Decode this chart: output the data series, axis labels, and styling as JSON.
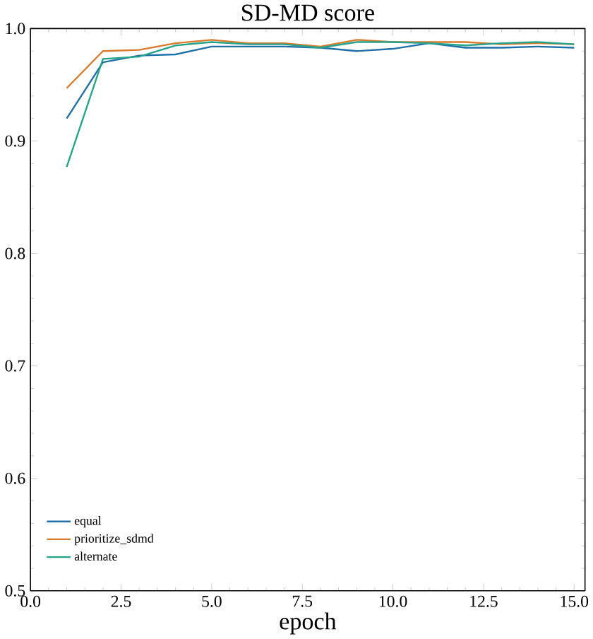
{
  "chart_data": {
    "type": "line",
    "title": "SD-MD score",
    "xlabel": "epoch",
    "x": [
      1,
      2,
      3,
      4,
      5,
      6,
      7,
      8,
      9,
      10,
      11,
      12,
      13,
      14,
      15
    ],
    "series": [
      {
        "name": "equal",
        "color": "#1f6fa8",
        "values": [
          0.92,
          0.97,
          0.976,
          0.977,
          0.984,
          0.984,
          0.984,
          0.983,
          0.98,
          0.982,
          0.987,
          0.983,
          0.983,
          0.984,
          0.983
        ]
      },
      {
        "name": "prioritize_sdmd",
        "color": "#d97a2a",
        "values": [
          0.947,
          0.98,
          0.981,
          0.987,
          0.99,
          0.987,
          0.987,
          0.984,
          0.99,
          0.988,
          0.988,
          0.988,
          0.986,
          0.987,
          0.986
        ]
      },
      {
        "name": "alternate",
        "color": "#26a48a",
        "values": [
          0.877,
          0.973,
          0.975,
          0.985,
          0.988,
          0.986,
          0.986,
          0.983,
          0.988,
          0.988,
          0.987,
          0.985,
          0.987,
          0.988,
          0.986
        ]
      }
    ],
    "xlim": [
      0,
      15.3
    ],
    "ylim": [
      0.5,
      1.0
    ],
    "xticks": [
      {
        "value": 0,
        "label": "0.0"
      },
      {
        "value": 2.5,
        "label": "2.5"
      },
      {
        "value": 5,
        "label": "5.0"
      },
      {
        "value": 7.5,
        "label": "7.5"
      },
      {
        "value": 10,
        "label": "10.0"
      },
      {
        "value": 12.5,
        "label": "12.5"
      },
      {
        "value": 15,
        "label": "15.0"
      }
    ],
    "yticks": [
      {
        "value": 0.5,
        "label": "0.5"
      },
      {
        "value": 0.6,
        "label": "0.6"
      },
      {
        "value": 0.7,
        "label": "0.7"
      },
      {
        "value": 0.8,
        "label": "0.8"
      },
      {
        "value": 0.9,
        "label": "0.9"
      },
      {
        "value": 1.0,
        "label": "1.0"
      }
    ],
    "legend": "bottom left",
    "grid": false,
    "marker": "none",
    "line_style": "solid"
  }
}
